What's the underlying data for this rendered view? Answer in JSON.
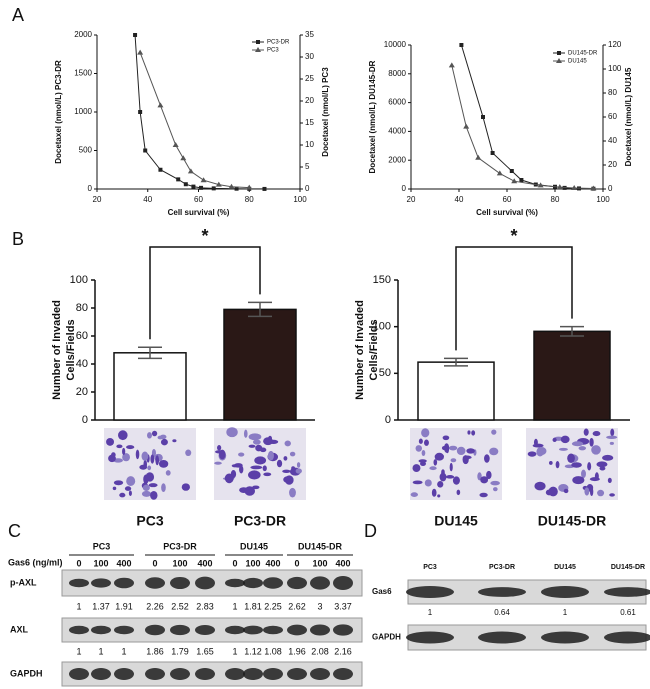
{
  "panels": [
    "A",
    "B",
    "C",
    "D"
  ],
  "chart_data": [
    {
      "type": "line",
      "xlabel": "Cell survival (%)",
      "ylabel": "Docetaxel (nmol/L) PC3-DR",
      "y2label": "Docetaxel (nmol/L) PC3",
      "xlim": [
        20,
        100
      ],
      "xticks": [
        20,
        40,
        60,
        80,
        100
      ],
      "ylim": [
        0,
        2000
      ],
      "yticks": [
        0,
        500,
        1000,
        1500,
        2000
      ],
      "y2lim": [
        0,
        35
      ],
      "y2ticks": [
        0,
        5,
        10,
        15,
        20,
        25,
        30,
        35
      ],
      "series": [
        {
          "name": "PC3-DR",
          "color": "#222222",
          "marker": "square",
          "x": [
            35,
            37,
            39,
            45,
            52,
            55,
            58,
            61,
            66,
            75,
            80,
            86
          ],
          "values": [
            2000,
            1000,
            500,
            250,
            125,
            62,
            31,
            15,
            8,
            4,
            2,
            1
          ]
        },
        {
          "name": "PC3",
          "color": "#555555",
          "marker": "triangle",
          "axis": "y2",
          "x": [
            37,
            45,
            51,
            54,
            57,
            62,
            68,
            73,
            80
          ],
          "values": [
            31,
            19,
            10,
            7,
            4,
            2,
            1,
            0.5,
            0.3
          ]
        }
      ]
    },
    {
      "type": "line",
      "xlabel": "Cell survival (%)",
      "ylabel": "Docetaxel (nmol/L) DU145-DR",
      "y2label": "Docetaxel (nmol/L) DU145",
      "xlim": [
        20,
        100
      ],
      "xticks": [
        20,
        40,
        60,
        80,
        100
      ],
      "ylim": [
        0,
        10000
      ],
      "yticks": [
        0,
        2000,
        4000,
        6000,
        8000,
        10000
      ],
      "y2lim": [
        0,
        120
      ],
      "y2ticks": [
        0,
        20,
        40,
        60,
        80,
        100,
        120
      ],
      "series": [
        {
          "name": "DU145-DR",
          "color": "#222222",
          "marker": "square",
          "x": [
            41,
            50,
            54,
            62,
            66,
            72,
            80,
            84,
            90,
            96
          ],
          "values": [
            10000,
            5000,
            2500,
            1250,
            625,
            312,
            156,
            78,
            39,
            20
          ]
        },
        {
          "name": "DU145",
          "color": "#555555",
          "marker": "triangle",
          "axis": "y2",
          "x": [
            37,
            43,
            48,
            57,
            63,
            74,
            82,
            88,
            96
          ],
          "values": [
            103,
            52,
            26,
            13,
            6.5,
            3,
            1.6,
            0.8,
            0.4
          ]
        }
      ]
    },
    {
      "type": "bar",
      "ylabel": [
        "Number of Invaded",
        "Cells/Fields"
      ],
      "categories": [
        "PC3",
        "PC3-DR"
      ],
      "values": [
        48,
        79
      ],
      "errors": [
        4,
        5
      ],
      "colors": [
        "#ffffff",
        "#2a1816"
      ],
      "ylim": [
        0,
        100
      ],
      "yticks": [
        0,
        20,
        40,
        60,
        80,
        100
      ],
      "annotation": "*"
    },
    {
      "type": "bar",
      "ylabel": [
        "Number of Invaded",
        "Cells/Fields"
      ],
      "categories": [
        "DU145",
        "DU145-DR"
      ],
      "values": [
        62,
        95
      ],
      "errors": [
        4,
        5
      ],
      "colors": [
        "#ffffff",
        "#2a1816"
      ],
      "ylim": [
        0,
        150
      ],
      "yticks": [
        0,
        50,
        100,
        150
      ],
      "annotation": "*"
    }
  ],
  "western_c": {
    "treatment_label": "Gas6 (ng/ml)",
    "groups": [
      {
        "name": "PC3",
        "doses": [
          0,
          100,
          400
        ]
      },
      {
        "name": "PC3-DR",
        "doses": [
          0,
          100,
          400
        ]
      },
      {
        "name": "DU145",
        "doses": [
          0,
          100,
          400
        ]
      },
      {
        "name": "DU145-DR",
        "doses": [
          0,
          100,
          400
        ]
      }
    ],
    "rows": [
      {
        "name": "p-AXL",
        "values": [
          1,
          1.37,
          1.91,
          2.26,
          2.52,
          2.83,
          1,
          1.81,
          2.25,
          2.62,
          3,
          3.37
        ]
      },
      {
        "name": "AXL",
        "values": [
          1,
          1,
          1,
          1.86,
          1.79,
          1.65,
          1,
          1.12,
          1.08,
          1.96,
          2.08,
          2.16
        ]
      },
      {
        "name": "GAPDH"
      }
    ]
  },
  "western_d": {
    "groups": [
      "PC3",
      "PC3-DR",
      "DU145",
      "DU145-DR"
    ],
    "rows": [
      {
        "name": "Gas6",
        "values": [
          1,
          0.64,
          1,
          0.61
        ]
      },
      {
        "name": "GAPDH"
      }
    ]
  }
}
